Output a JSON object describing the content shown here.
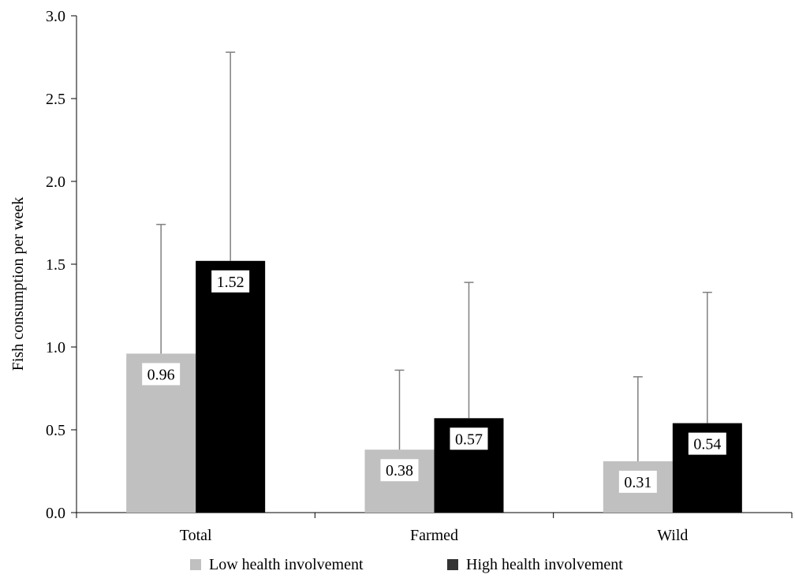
{
  "chart_data": {
    "type": "bar",
    "title": "",
    "xlabel": "",
    "ylabel": "Fish consumption per week",
    "ylim": [
      0,
      3.0
    ],
    "yticks": [
      "0.0",
      "0.5",
      "1.0",
      "1.5",
      "2.0",
      "2.5",
      "3.0"
    ],
    "grid": false,
    "legend_position": "bottom",
    "categories": [
      "Total",
      "Farmed",
      "Wild"
    ],
    "series": [
      {
        "name": "Low health involvement",
        "color": "#c0c0c0",
        "values": [
          0.96,
          0.38,
          0.31
        ],
        "labels": [
          "0.96",
          "0.38",
          "0.31"
        ],
        "error_upper": [
          1.74,
          0.86,
          0.82
        ]
      },
      {
        "name": "High health involvement",
        "color": "#000000",
        "values": [
          1.52,
          0.57,
          0.54
        ],
        "labels": [
          "1.52",
          "0.57",
          "0.54"
        ],
        "error_upper": [
          2.78,
          1.39,
          1.33
        ]
      }
    ]
  }
}
